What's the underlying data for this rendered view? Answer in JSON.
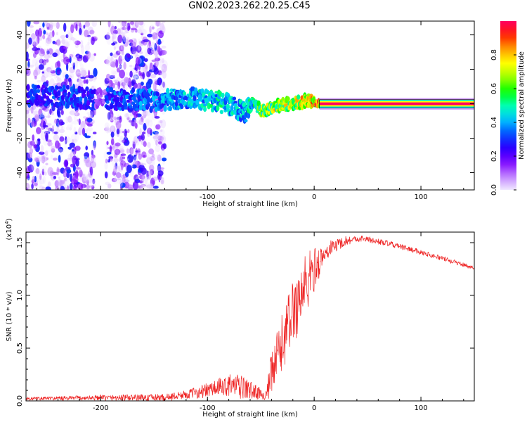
{
  "figure_title": "GN02.2023.262.20.25.C45",
  "chart_data": [
    {
      "type": "heatmap",
      "xlabel": "Height of straight line (km)",
      "ylabel": "Frequency (Hz)",
      "xlim": [
        -270,
        150
      ],
      "ylim": [
        -50,
        48
      ],
      "xticks": [
        -200,
        -100,
        0,
        100
      ],
      "xtick_labels": [
        "-200",
        "-100",
        "0",
        "100"
      ],
      "yticks": [
        -40,
        -20,
        0,
        20,
        40
      ],
      "ytick_labels": [
        "-40",
        "-20",
        "0",
        "20",
        "40"
      ],
      "colorbar": {
        "label": "Normalized spectral amplitude",
        "range": [
          0,
          1
        ],
        "ticks": [
          0.0,
          0.2,
          0.4,
          0.6,
          0.8
        ],
        "tick_labels": [
          "0.0",
          "0.2",
          "0.4",
          "0.6",
          "0.8"
        ],
        "colors": [
          "#f0e8ff",
          "#c080ff",
          "#7b00ff",
          "#2a00ff",
          "#0050ff",
          "#00c8ff",
          "#00ffb0",
          "#00ff00",
          "#a0ff00",
          "#ffff00",
          "#ffa000",
          "#ff2000",
          "#ff0060"
        ]
      },
      "ridge": {
        "description_points": [
          {
            "x": -260,
            "f": 5,
            "amp": 0.35
          },
          {
            "x": -230,
            "f": 4,
            "amp": 0.4
          },
          {
            "x": -210,
            "f": 3,
            "amp": 0.35
          },
          {
            "x": -145,
            "f": 2,
            "amp": 0.45
          },
          {
            "x": -120,
            "f": 3,
            "amp": 0.5
          },
          {
            "x": -100,
            "f": 2,
            "amp": 0.55
          },
          {
            "x": -80,
            "f": 0,
            "amp": 0.55
          },
          {
            "x": -65,
            "f": -5,
            "amp": 0.5
          },
          {
            "x": -58,
            "f": 0,
            "amp": 0.6
          },
          {
            "x": -48,
            "f": -5,
            "amp": 0.75
          },
          {
            "x": -35,
            "f": -1,
            "amp": 0.85
          },
          {
            "x": -20,
            "f": 0,
            "amp": 0.85
          },
          {
            "x": -5,
            "f": 2,
            "amp": 0.9
          },
          {
            "x": 5,
            "f": 0,
            "amp": 1.0
          },
          {
            "x": 150,
            "f": 0,
            "amp": 1.0
          }
        ],
        "noise_bands": [
          [
            -270,
            -205
          ],
          [
            -195,
            -140
          ]
        ]
      }
    },
    {
      "type": "line",
      "xlabel": "Height of straight line (km)",
      "ylabel": "SNR (10 * v/v)",
      "yscale_label": "(x10",
      "yscale_exp": "4",
      "yscale_close": ")",
      "xlim": [
        -270,
        150
      ],
      "ylim": [
        0,
        1.6
      ],
      "xticks": [
        -200,
        -100,
        0,
        100
      ],
      "xtick_labels": [
        "-200",
        "-100",
        "0",
        "100"
      ],
      "yticks": [
        0.0,
        0.5,
        1.0,
        1.5
      ],
      "ytick_labels": [
        "0.0",
        "0.5",
        "1.0",
        "1.5"
      ],
      "line_color": "#ee2222",
      "envelope": [
        {
          "x": -270,
          "y": 0.02
        },
        {
          "x": -200,
          "y": 0.03
        },
        {
          "x": -140,
          "y": 0.03
        },
        {
          "x": -120,
          "y": 0.06
        },
        {
          "x": -100,
          "y": 0.1
        },
        {
          "x": -80,
          "y": 0.15
        },
        {
          "x": -65,
          "y": 0.12
        },
        {
          "x": -45,
          "y": 0.05
        },
        {
          "x": -38,
          "y": 0.3
        },
        {
          "x": -30,
          "y": 0.55
        },
        {
          "x": -20,
          "y": 0.85
        },
        {
          "x": -10,
          "y": 1.05
        },
        {
          "x": 0,
          "y": 1.25
        },
        {
          "x": 15,
          "y": 1.45
        },
        {
          "x": 30,
          "y": 1.52
        },
        {
          "x": 45,
          "y": 1.54
        },
        {
          "x": 70,
          "y": 1.49
        },
        {
          "x": 100,
          "y": 1.41
        },
        {
          "x": 130,
          "y": 1.32
        },
        {
          "x": 150,
          "y": 1.26
        }
      ],
      "noise_amplitude": [
        {
          "x": -270,
          "a": 0.015
        },
        {
          "x": -120,
          "a": 0.04
        },
        {
          "x": -70,
          "a": 0.12
        },
        {
          "x": -45,
          "a": 0.04
        },
        {
          "x": -40,
          "a": 0.25
        },
        {
          "x": -10,
          "a": 0.35
        },
        {
          "x": 10,
          "a": 0.08
        },
        {
          "x": 40,
          "a": 0.03
        },
        {
          "x": 150,
          "a": 0.02
        }
      ]
    }
  ]
}
